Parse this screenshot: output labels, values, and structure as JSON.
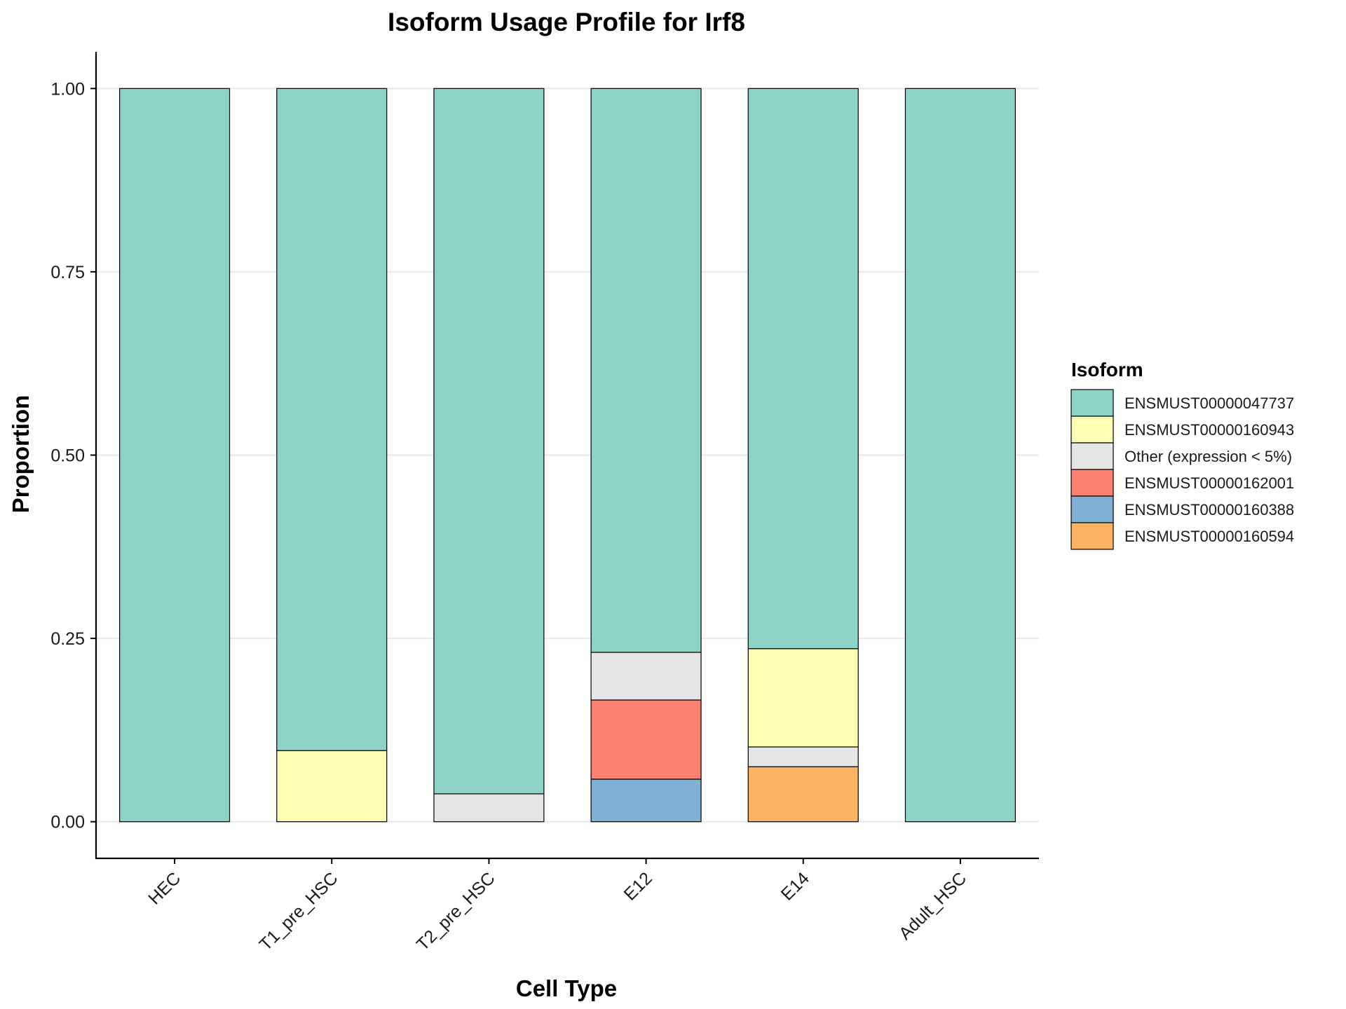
{
  "chart_data": {
    "type": "bar",
    "stacked": true,
    "title": "Isoform Usage Profile for Irf8",
    "xlabel": "Cell Type",
    "ylabel": "Proportion",
    "ylim": [
      -0.05,
      1.05
    ],
    "yticks": [
      "0.00",
      "0.25",
      "0.50",
      "0.75",
      "1.00"
    ],
    "grid": "horizontal",
    "legend_position": "right",
    "legend_title": "Isoform",
    "categories": [
      "HEC",
      "T1_pre_HSC",
      "T2_pre_HSC",
      "E12",
      "E14",
      "Adult_HSC"
    ],
    "series": [
      {
        "name": "ENSMUST00000160594",
        "color": "#FDB462",
        "values": [
          0,
          0,
          0,
          0,
          0.075,
          0
        ]
      },
      {
        "name": "ENSMUST00000160388",
        "color": "#80B1D3",
        "values": [
          0,
          0,
          0,
          0.058,
          0,
          0
        ]
      },
      {
        "name": "ENSMUST00000162001",
        "color": "#FB8072",
        "values": [
          0,
          0,
          0,
          0.108,
          0,
          0
        ]
      },
      {
        "name": "Other (expression < 5%)",
        "color": "#E5E5E5",
        "values": [
          0,
          0,
          0.038,
          0.065,
          0.027,
          0
        ]
      },
      {
        "name": "ENSMUST00000160943",
        "color": "#FFFFB3",
        "values": [
          0,
          0.097,
          0,
          0,
          0.134,
          0
        ]
      },
      {
        "name": "ENSMUST00000047737",
        "color": "#8DD3C7",
        "values": [
          1.0,
          0.903,
          0.962,
          0.769,
          0.764,
          1.0
        ]
      }
    ],
    "legend_order": [
      "ENSMUST00000047737",
      "ENSMUST00000160943",
      "Other (expression < 5%)",
      "ENSMUST00000162001",
      "ENSMUST00000160388",
      "ENSMUST00000160594"
    ]
  }
}
